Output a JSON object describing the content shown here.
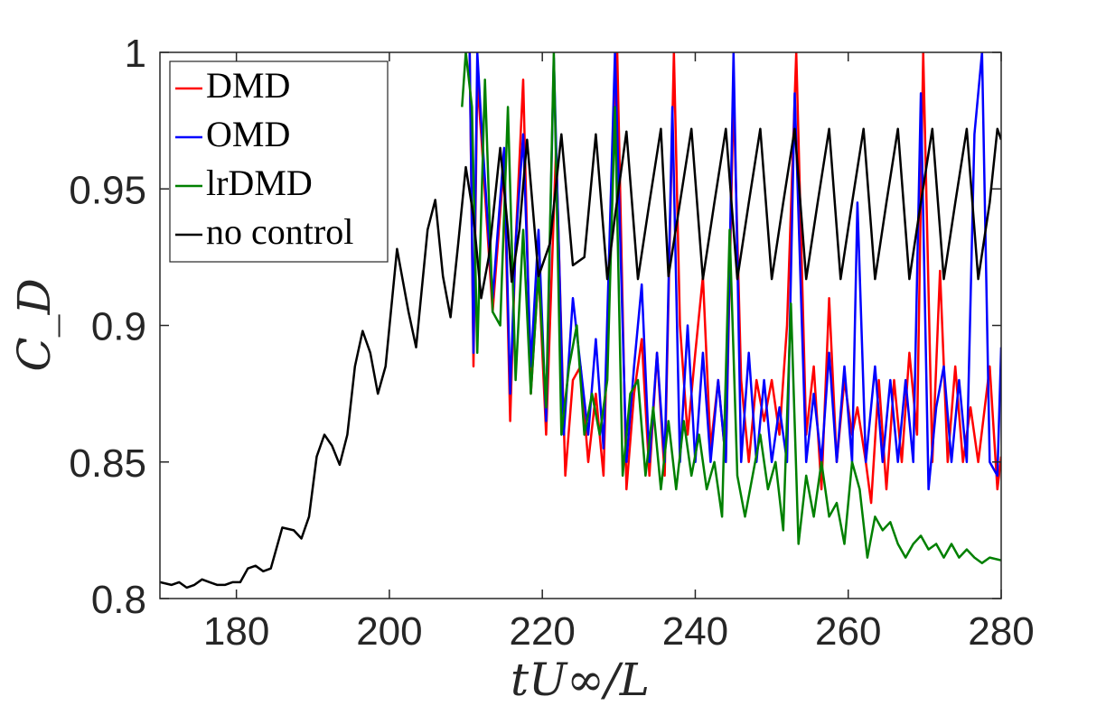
{
  "chart_data": {
    "type": "line",
    "xlabel": "tU∞/L",
    "ylabel": "C_D",
    "xlim": [
      170,
      280
    ],
    "ylim": [
      0.8,
      1.0
    ],
    "xticks": [
      180,
      200,
      220,
      240,
      260,
      280
    ],
    "xtick_labels": [
      "180",
      "200",
      "220",
      "240",
      "260",
      "280"
    ],
    "yticks": [
      0.8,
      0.85,
      0.9,
      0.95,
      1.0
    ],
    "ytick_labels": [
      "0.8",
      "0.85",
      "0.9",
      "0.95",
      "1"
    ],
    "legend_position": "top-left",
    "series": [
      {
        "name": "DMD",
        "color": "#ff0000",
        "points": [
          [
            210.5,
            1.0
          ],
          [
            211.0,
            0.885
          ],
          [
            211.5,
            0.99
          ],
          [
            212.0,
            0.97
          ],
          [
            213.5,
            0.905
          ],
          [
            215.0,
            0.96
          ],
          [
            215.8,
            0.865
          ],
          [
            216.5,
            0.93
          ],
          [
            217.5,
            0.99
          ],
          [
            218.5,
            0.875
          ],
          [
            219.5,
            0.92
          ],
          [
            220.5,
            0.86
          ],
          [
            221.8,
            0.965
          ],
          [
            223.0,
            0.845
          ],
          [
            224.0,
            0.88
          ],
          [
            225.0,
            0.885
          ],
          [
            226.0,
            0.85
          ],
          [
            227.0,
            0.875
          ],
          [
            228.0,
            0.845
          ],
          [
            229.0,
            0.95
          ],
          [
            229.8,
            1.0
          ],
          [
            231.0,
            0.84
          ],
          [
            232.0,
            0.875
          ],
          [
            233.0,
            0.895
          ],
          [
            234.0,
            0.845
          ],
          [
            235.0,
            0.89
          ],
          [
            236.0,
            0.845
          ],
          [
            237.2,
            1.0
          ],
          [
            238.0,
            0.9
          ],
          [
            239.0,
            0.86
          ],
          [
            240.0,
            0.89
          ],
          [
            241.0,
            0.918
          ],
          [
            242.0,
            0.855
          ],
          [
            243.0,
            0.88
          ],
          [
            244.0,
            0.85
          ],
          [
            245.0,
            0.985
          ],
          [
            246.0,
            0.88
          ],
          [
            247.0,
            0.85
          ],
          [
            248.0,
            0.88
          ],
          [
            249.0,
            0.865
          ],
          [
            250.0,
            0.88
          ],
          [
            251.0,
            0.86
          ],
          [
            252.0,
            0.9
          ],
          [
            253.2,
            1.0
          ],
          [
            254.5,
            0.86
          ],
          [
            255.5,
            0.885
          ],
          [
            256.5,
            0.84
          ],
          [
            257.5,
            0.91
          ],
          [
            258.5,
            0.85
          ],
          [
            259.5,
            0.88
          ],
          [
            260.5,
            0.86
          ],
          [
            261.2,
            0.87
          ],
          [
            262.3,
            0.85
          ],
          [
            263.0,
            0.835
          ],
          [
            264.0,
            0.88
          ],
          [
            265.0,
            0.84
          ],
          [
            266.0,
            0.88
          ],
          [
            267.0,
            0.85
          ],
          [
            268.0,
            0.89
          ],
          [
            269.0,
            0.86
          ],
          [
            269.8,
            1.0
          ],
          [
            271.0,
            0.85
          ],
          [
            272.0,
            0.92
          ],
          [
            273.0,
            0.85
          ],
          [
            274.0,
            0.885
          ],
          [
            275.0,
            0.85
          ],
          [
            276.0,
            0.87
          ],
          [
            277.0,
            0.85
          ],
          [
            278.5,
            0.885
          ],
          [
            279.5,
            0.84
          ],
          [
            280.0,
            0.852
          ]
        ]
      },
      {
        "name": "OMD",
        "color": "#0000ff",
        "points": [
          [
            210.5,
            1.0
          ],
          [
            211.0,
            0.89
          ],
          [
            211.5,
            1.0
          ],
          [
            212.0,
            0.975
          ],
          [
            213.5,
            0.91
          ],
          [
            215.0,
            0.965
          ],
          [
            215.8,
            0.875
          ],
          [
            216.5,
            0.93
          ],
          [
            217.5,
            0.97
          ],
          [
            218.5,
            0.885
          ],
          [
            219.5,
            0.935
          ],
          [
            220.5,
            0.865
          ],
          [
            221.5,
            0.998
          ],
          [
            222.8,
            0.86
          ],
          [
            224.0,
            0.91
          ],
          [
            225.0,
            0.885
          ],
          [
            226.0,
            0.86
          ],
          [
            227.0,
            0.895
          ],
          [
            228.0,
            0.855
          ],
          [
            229.5,
            1.0
          ],
          [
            231.0,
            0.85
          ],
          [
            232.0,
            0.885
          ],
          [
            233.0,
            0.915
          ],
          [
            234.0,
            0.85
          ],
          [
            235.0,
            0.89
          ],
          [
            236.0,
            0.85
          ],
          [
            237.0,
            0.98
          ],
          [
            238.0,
            0.85
          ],
          [
            239.0,
            0.9
          ],
          [
            240.0,
            0.85
          ],
          [
            241.0,
            0.89
          ],
          [
            242.0,
            0.85
          ],
          [
            243.0,
            0.88
          ],
          [
            244.0,
            0.85
          ],
          [
            245.0,
            1.0
          ],
          [
            246.0,
            0.85
          ],
          [
            247.0,
            0.89
          ],
          [
            248.0,
            0.85
          ],
          [
            249.0,
            0.88
          ],
          [
            250.0,
            0.85
          ],
          [
            251.0,
            0.87
          ],
          [
            252.0,
            0.85
          ],
          [
            253.0,
            0.985
          ],
          [
            254.5,
            0.85
          ],
          [
            255.5,
            0.875
          ],
          [
            256.5,
            0.85
          ],
          [
            257.5,
            0.89
          ],
          [
            258.5,
            0.85
          ],
          [
            259.5,
            0.885
          ],
          [
            260.5,
            0.85
          ],
          [
            261.2,
            0.945
          ],
          [
            262.3,
            0.85
          ],
          [
            263.5,
            0.885
          ],
          [
            264.5,
            0.85
          ],
          [
            265.5,
            0.88
          ],
          [
            266.5,
            0.85
          ],
          [
            267.5,
            0.88
          ],
          [
            268.5,
            0.85
          ],
          [
            269.5,
            0.985
          ],
          [
            270.5,
            0.84
          ],
          [
            271.5,
            0.87
          ],
          [
            272.5,
            0.885
          ],
          [
            273.5,
            0.85
          ],
          [
            274.5,
            0.88
          ],
          [
            275.5,
            0.85
          ],
          [
            276.5,
            0.97
          ],
          [
            277.5,
            1.0
          ],
          [
            278.5,
            0.85
          ],
          [
            279.5,
            0.845
          ],
          [
            280.0,
            0.892
          ]
        ]
      },
      {
        "name": "lrDMD",
        "color": "#008000",
        "points": [
          [
            209.5,
            0.98
          ],
          [
            210.0,
            1.0
          ],
          [
            210.8,
            0.98
          ],
          [
            211.5,
            0.89
          ],
          [
            212.5,
            0.99
          ],
          [
            213.5,
            0.905
          ],
          [
            214.5,
            0.9
          ],
          [
            215.5,
            0.98
          ],
          [
            216.5,
            0.88
          ],
          [
            217.5,
            0.935
          ],
          [
            218.5,
            0.875
          ],
          [
            219.5,
            0.92
          ],
          [
            220.5,
            0.87
          ],
          [
            221.5,
            1.0
          ],
          [
            222.5,
            0.86
          ],
          [
            223.5,
            0.885
          ],
          [
            224.5,
            0.9
          ],
          [
            225.5,
            0.86
          ],
          [
            226.5,
            0.875
          ],
          [
            227.5,
            0.86
          ],
          [
            228.5,
            0.88
          ],
          [
            229.5,
            0.98
          ],
          [
            230.5,
            0.845
          ],
          [
            231.5,
            0.875
          ],
          [
            232.5,
            0.88
          ],
          [
            233.5,
            0.845
          ],
          [
            234.5,
            0.87
          ],
          [
            235.5,
            0.84
          ],
          [
            236.5,
            0.865
          ],
          [
            237.5,
            0.84
          ],
          [
            238.5,
            0.865
          ],
          [
            239.5,
            0.845
          ],
          [
            240.5,
            0.86
          ],
          [
            241.5,
            0.84
          ],
          [
            242.5,
            0.85
          ],
          [
            243.5,
            0.83
          ],
          [
            244.5,
            0.935
          ],
          [
            245.5,
            0.845
          ],
          [
            246.5,
            0.83
          ],
          [
            247.5,
            0.845
          ],
          [
            248.5,
            0.86
          ],
          [
            249.5,
            0.84
          ],
          [
            250.5,
            0.85
          ],
          [
            251.5,
            0.825
          ],
          [
            252.5,
            0.908
          ],
          [
            253.5,
            0.82
          ],
          [
            254.5,
            0.845
          ],
          [
            255.5,
            0.83
          ],
          [
            256.5,
            0.85
          ],
          [
            257.5,
            0.83
          ],
          [
            258.5,
            0.835
          ],
          [
            259.5,
            0.82
          ],
          [
            260.5,
            0.85
          ],
          [
            261.5,
            0.84
          ],
          [
            262.5,
            0.815
          ],
          [
            263.5,
            0.83
          ],
          [
            264.5,
            0.825
          ],
          [
            265.5,
            0.828
          ],
          [
            266.5,
            0.82
          ],
          [
            267.5,
            0.815
          ],
          [
            268.5,
            0.82
          ],
          [
            269.5,
            0.823
          ],
          [
            270.5,
            0.818
          ],
          [
            271.5,
            0.82
          ],
          [
            272.5,
            0.815
          ],
          [
            273.5,
            0.82
          ],
          [
            274.5,
            0.815
          ],
          [
            275.5,
            0.818
          ],
          [
            276.5,
            0.815
          ],
          [
            277.5,
            0.813
          ],
          [
            278.5,
            0.815
          ],
          [
            280.0,
            0.814
          ]
        ]
      },
      {
        "name": "no control",
        "color": "#000000",
        "points": [
          [
            170.0,
            0.806
          ],
          [
            171.5,
            0.805
          ],
          [
            172.5,
            0.806
          ],
          [
            173.5,
            0.804
          ],
          [
            174.5,
            0.805
          ],
          [
            175.5,
            0.807
          ],
          [
            176.5,
            0.806
          ],
          [
            177.5,
            0.805
          ],
          [
            178.5,
            0.805
          ],
          [
            179.5,
            0.806
          ],
          [
            180.5,
            0.806
          ],
          [
            181.5,
            0.811
          ],
          [
            182.5,
            0.812
          ],
          [
            183.5,
            0.81
          ],
          [
            184.5,
            0.811
          ],
          [
            186.0,
            0.826
          ],
          [
            187.5,
            0.825
          ],
          [
            188.5,
            0.822
          ],
          [
            189.5,
            0.83
          ],
          [
            190.5,
            0.852
          ],
          [
            191.5,
            0.86
          ],
          [
            192.5,
            0.856
          ],
          [
            193.5,
            0.849
          ],
          [
            194.5,
            0.86
          ],
          [
            195.5,
            0.885
          ],
          [
            196.5,
            0.898
          ],
          [
            197.5,
            0.89
          ],
          [
            198.5,
            0.875
          ],
          [
            199.5,
            0.885
          ],
          [
            201.0,
            0.928
          ],
          [
            202.5,
            0.905
          ],
          [
            203.5,
            0.892
          ],
          [
            205.0,
            0.935
          ],
          [
            206.0,
            0.946
          ],
          [
            207.0,
            0.918
          ],
          [
            208.0,
            0.903
          ],
          [
            209.0,
            0.93
          ],
          [
            210.0,
            0.958
          ],
          [
            211.0,
            0.94
          ],
          [
            212.0,
            0.91
          ],
          [
            213.0,
            0.925
          ],
          [
            214.5,
            0.965
          ],
          [
            215.5,
            0.935
          ],
          [
            216.0,
            0.916
          ],
          [
            217.0,
            0.935
          ],
          [
            218.0,
            0.968
          ],
          [
            219.5,
            0.918
          ],
          [
            221.0,
            0.93
          ],
          [
            222.5,
            0.97
          ],
          [
            224.0,
            0.922
          ],
          [
            225.5,
            0.925
          ],
          [
            227.0,
            0.97
          ],
          [
            228.5,
            0.917
          ],
          [
            229.5,
            0.94
          ],
          [
            231.0,
            0.971
          ],
          [
            232.5,
            0.917
          ],
          [
            234.0,
            0.945
          ],
          [
            235.5,
            0.972
          ],
          [
            236.5,
            0.918
          ],
          [
            238.0,
            0.945
          ],
          [
            239.5,
            0.972
          ],
          [
            241.0,
            0.917
          ],
          [
            242.5,
            0.945
          ],
          [
            244.0,
            0.972
          ],
          [
            245.5,
            0.917
          ],
          [
            247.0,
            0.945
          ],
          [
            248.5,
            0.972
          ],
          [
            250.0,
            0.917
          ],
          [
            251.5,
            0.945
          ],
          [
            253.0,
            0.972
          ],
          [
            254.5,
            0.917
          ],
          [
            256.0,
            0.945
          ],
          [
            257.5,
            0.972
          ],
          [
            259.0,
            0.917
          ],
          [
            260.5,
            0.945
          ],
          [
            262.0,
            0.972
          ],
          [
            263.5,
            0.917
          ],
          [
            265.0,
            0.945
          ],
          [
            266.5,
            0.972
          ],
          [
            268.0,
            0.917
          ],
          [
            269.5,
            0.945
          ],
          [
            271.0,
            0.972
          ],
          [
            272.5,
            0.917
          ],
          [
            274.0,
            0.945
          ],
          [
            275.5,
            0.972
          ],
          [
            277.0,
            0.917
          ],
          [
            278.5,
            0.945
          ],
          [
            279.5,
            0.972
          ],
          [
            280.0,
            0.968
          ]
        ]
      }
    ]
  }
}
